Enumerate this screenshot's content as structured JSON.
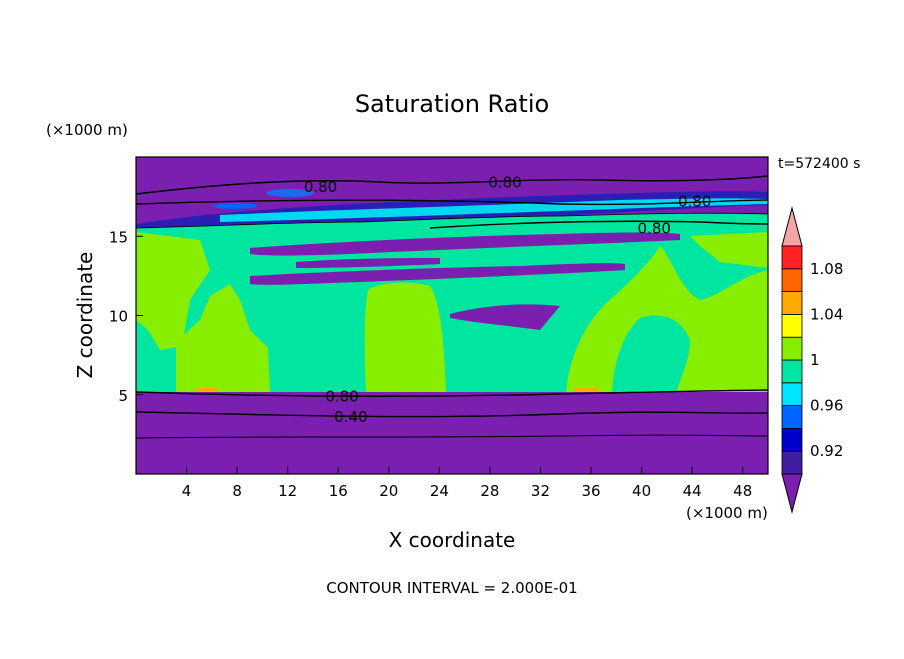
{
  "chart_data": {
    "type": "heatmap",
    "title": "Saturation Ratio",
    "xlabel": "X coordinate",
    "ylabel": "Z coordinate",
    "x_unit": "(×1000 m)",
    "y_unit": "(×1000 m)",
    "time_label": "t=572400 s",
    "footer": "CONTOUR INTERVAL = 2.000E-01",
    "xlim": [
      0,
      50
    ],
    "ylim": [
      0,
      20
    ],
    "x_ticks": [
      4,
      8,
      12,
      16,
      20,
      24,
      28,
      32,
      36,
      40,
      44,
      48
    ],
    "y_ticks": [
      5,
      10,
      15
    ],
    "colorbar": {
      "levels": [
        0.9,
        0.92,
        0.94,
        0.96,
        0.98,
        1.0,
        1.02,
        1.04,
        1.06,
        1.08,
        1.1
      ],
      "labels": [
        "0.92",
        "0.96",
        "1",
        "1.04",
        "1.08"
      ],
      "label_values": [
        0.92,
        0.96,
        1.0,
        1.04,
        1.08
      ],
      "colors": [
        "#3f1ea0",
        "#0000cc",
        "#0066ff",
        "#00e5ff",
        "#00e6a0",
        "#88ee00",
        "#ffff00",
        "#ffaa00",
        "#ff6600",
        "#ff2222"
      ],
      "under_color": "#7b1fb0",
      "over_color": "#f4a6a6"
    },
    "contour_labels": [
      {
        "text": "0.80",
        "x": 14.6,
        "y": 18.1
      },
      {
        "text": "0.80",
        "x": 29.2,
        "y": 18.4
      },
      {
        "text": "0.80",
        "x": 44.2,
        "y": 17.2
      },
      {
        "text": "0.80",
        "x": 41.0,
        "y": 15.5
      },
      {
        "text": "0.80",
        "x": 16.3,
        "y": 4.9
      },
      {
        "text": "0.40",
        "x": 17.0,
        "y": 3.6
      }
    ]
  }
}
